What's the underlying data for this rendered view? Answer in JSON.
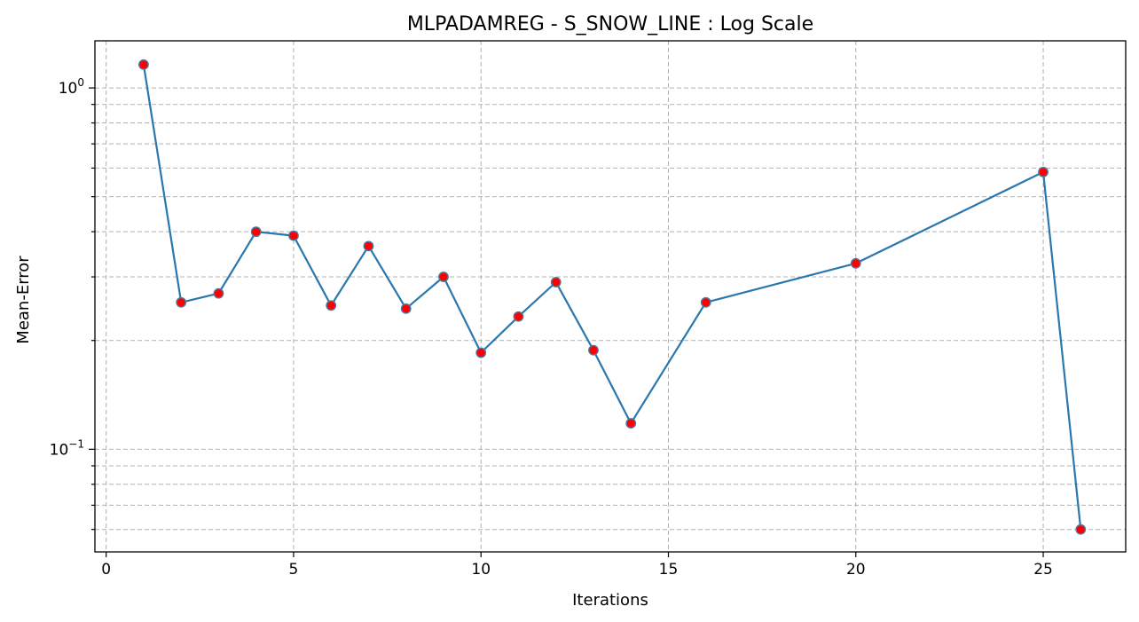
{
  "chart_data": {
    "type": "line",
    "title": "MLPADAMREG - S_SNOW_LINE : Log Scale",
    "xlabel": "Iterations",
    "ylabel": "Mean-Error",
    "yscale": "log",
    "grid": true,
    "xlim": [
      -0.3,
      27.2
    ],
    "ylim": [
      0.052,
      1.35
    ],
    "xticks": [
      0,
      5,
      10,
      15,
      20,
      25
    ],
    "yticks_major": [
      {
        "value": 0.1,
        "base": "10",
        "exp": "−1"
      },
      {
        "value": 1,
        "base": "10",
        "exp": "0"
      }
    ],
    "yticks_minor": [
      0.06,
      0.07,
      0.08,
      0.09,
      0.2,
      0.3,
      0.4,
      0.5,
      0.6,
      0.7,
      0.8,
      0.9
    ],
    "line_color": "#2a77ad",
    "marker_face_color": "#ff0000",
    "marker_edge_color": "#4a7aa0",
    "series": [
      {
        "x": [
          1,
          2,
          3,
          4,
          5,
          6,
          7,
          8,
          9,
          10,
          11,
          12,
          13,
          14,
          16,
          20,
          25,
          26
        ],
        "values": [
          1.16,
          0.255,
          0.27,
          0.4,
          0.39,
          0.25,
          0.365,
          0.245,
          0.3,
          0.185,
          0.233,
          0.29,
          0.188,
          0.118,
          0.255,
          0.327,
          0.585,
          0.06
        ]
      }
    ]
  }
}
